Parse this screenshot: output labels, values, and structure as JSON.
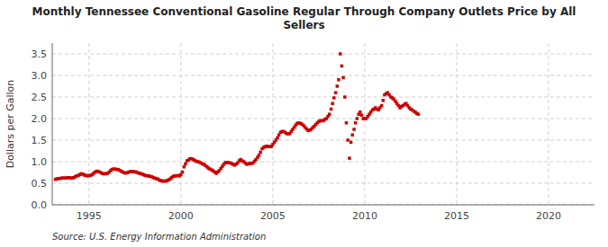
{
  "chart_data": {
    "type": "scatter",
    "title": "Monthly Tennessee Conventional Gasoline Regular Through Company Outlets Price by All\nSellers",
    "y_label": "Dollars per Gallon",
    "source": "Source: U.S. Energy Information Administration",
    "color": "#cc0000",
    "marker": "square",
    "grid": true,
    "xlim": [
      1993.0,
      2022.5
    ],
    "ylim": [
      0.0,
      3.75
    ],
    "xticks": [
      1995,
      2000,
      2005,
      2010,
      2015,
      2020
    ],
    "yticks": [
      {
        "value": 0.0,
        "label": "0.0"
      },
      0.5,
      {
        "value": 1.0,
        "label": "1.0"
      },
      1.5,
      {
        "value": 2.0,
        "label": "2.0"
      },
      2.5,
      {
        "value": 3.0,
        "label": "3.0"
      },
      3.5
    ],
    "x": [
      1993.17,
      1993.25,
      1993.33,
      1993.42,
      1993.5,
      1993.58,
      1993.67,
      1993.75,
      1993.83,
      1993.92,
      1994.0,
      1994.08,
      1994.17,
      1994.25,
      1994.33,
      1994.42,
      1994.5,
      1994.58,
      1994.67,
      1994.75,
      1994.83,
      1994.92,
      1995.0,
      1995.08,
      1995.17,
      1995.25,
      1995.33,
      1995.42,
      1995.5,
      1995.58,
      1995.67,
      1995.75,
      1995.83,
      1995.92,
      1996.0,
      1996.08,
      1996.17,
      1996.25,
      1996.33,
      1996.42,
      1996.5,
      1996.58,
      1996.67,
      1996.75,
      1996.83,
      1996.92,
      1997.0,
      1997.08,
      1997.17,
      1997.25,
      1997.33,
      1997.42,
      1997.5,
      1997.58,
      1997.67,
      1997.75,
      1997.83,
      1997.92,
      1998.0,
      1998.08,
      1998.17,
      1998.25,
      1998.33,
      1998.42,
      1998.5,
      1998.58,
      1998.67,
      1998.75,
      1998.83,
      1998.92,
      1999.0,
      1999.08,
      1999.17,
      1999.25,
      1999.33,
      1999.42,
      1999.5,
      1999.58,
      1999.67,
      1999.75,
      1999.83,
      1999.92,
      2000.0,
      2000.08,
      2000.17,
      2000.25,
      2000.33,
      2000.42,
      2000.5,
      2000.58,
      2000.67,
      2000.75,
      2000.83,
      2000.92,
      2001.0,
      2001.08,
      2001.17,
      2001.25,
      2001.33,
      2001.42,
      2001.5,
      2001.58,
      2001.67,
      2001.75,
      2001.83,
      2001.92,
      2002.0,
      2002.08,
      2002.17,
      2002.25,
      2002.33,
      2002.42,
      2002.5,
      2002.58,
      2002.67,
      2002.75,
      2002.83,
      2002.92,
      2003.0,
      2003.08,
      2003.17,
      2003.25,
      2003.33,
      2003.42,
      2003.5,
      2003.58,
      2003.67,
      2003.75,
      2003.83,
      2003.92,
      2004.0,
      2004.08,
      2004.17,
      2004.25,
      2004.33,
      2004.42,
      2004.5,
      2004.58,
      2004.67,
      2004.75,
      2004.83,
      2004.92,
      2005.0,
      2005.08,
      2005.17,
      2005.25,
      2005.33,
      2005.42,
      2005.5,
      2005.58,
      2005.67,
      2005.75,
      2005.83,
      2005.92,
      2006.0,
      2006.08,
      2006.17,
      2006.25,
      2006.33,
      2006.42,
      2006.5,
      2006.58,
      2006.67,
      2006.75,
      2006.83,
      2006.92,
      2007.0,
      2007.08,
      2007.17,
      2007.25,
      2007.33,
      2007.42,
      2007.5,
      2007.58,
      2007.67,
      2007.75,
      2007.83,
      2007.92,
      2008.0,
      2008.08,
      2008.17,
      2008.25,
      2008.33,
      2008.42,
      2008.5,
      2008.58,
      2008.67,
      2008.75,
      2008.83,
      2008.92,
      2009.0,
      2009.08,
      2009.17,
      2009.25,
      2009.33,
      2009.42,
      2009.5,
      2009.58,
      2009.67,
      2009.75,
      2009.83,
      2009.92,
      2010.0,
      2010.08,
      2010.17,
      2010.25,
      2010.33,
      2010.42,
      2010.5,
      2010.58,
      2010.67,
      2010.75,
      2010.83,
      2010.92,
      2011.0,
      2011.08,
      2011.17,
      2011.25,
      2011.33,
      2011.42,
      2011.5,
      2011.58,
      2011.67,
      2011.75,
      2011.83,
      2011.92,
      2012.0,
      2012.08,
      2012.17,
      2012.25,
      2012.33,
      2012.42,
      2012.5,
      2012.58,
      2012.67,
      2012.75,
      2012.83,
      2012.92
    ],
    "values": [
      0.59,
      0.6,
      0.61,
      0.61,
      0.62,
      0.62,
      0.62,
      0.62,
      0.63,
      0.63,
      0.62,
      0.62,
      0.63,
      0.65,
      0.67,
      0.68,
      0.7,
      0.72,
      0.71,
      0.69,
      0.68,
      0.67,
      0.68,
      0.68,
      0.7,
      0.73,
      0.76,
      0.78,
      0.77,
      0.76,
      0.74,
      0.72,
      0.72,
      0.72,
      0.73,
      0.75,
      0.79,
      0.82,
      0.83,
      0.83,
      0.82,
      0.82,
      0.8,
      0.78,
      0.76,
      0.74,
      0.74,
      0.74,
      0.76,
      0.77,
      0.77,
      0.77,
      0.76,
      0.76,
      0.74,
      0.73,
      0.72,
      0.71,
      0.69,
      0.68,
      0.67,
      0.67,
      0.66,
      0.65,
      0.63,
      0.62,
      0.6,
      0.6,
      0.57,
      0.56,
      0.55,
      0.55,
      0.55,
      0.56,
      0.58,
      0.6,
      0.63,
      0.66,
      0.67,
      0.67,
      0.68,
      0.67,
      0.7,
      0.76,
      0.88,
      0.95,
      1.02,
      1.04,
      1.07,
      1.07,
      1.05,
      1.03,
      1.01,
      1.0,
      0.99,
      0.97,
      0.95,
      0.94,
      0.91,
      0.88,
      0.85,
      0.83,
      0.81,
      0.79,
      0.76,
      0.73,
      0.76,
      0.79,
      0.84,
      0.89,
      0.94,
      0.98,
      0.98,
      0.98,
      0.97,
      0.96,
      0.94,
      0.92,
      0.94,
      0.97,
      1.02,
      1.05,
      1.02,
      1.0,
      0.97,
      0.94,
      0.95,
      0.96,
      0.96,
      0.97,
      1.01,
      1.05,
      1.1,
      1.15,
      1.22,
      1.3,
      1.33,
      1.35,
      1.36,
      1.35,
      1.35,
      1.35,
      1.4,
      1.45,
      1.5,
      1.55,
      1.62,
      1.68,
      1.7,
      1.7,
      1.68,
      1.65,
      1.65,
      1.65,
      1.7,
      1.75,
      1.8,
      1.85,
      1.89,
      1.9,
      1.89,
      1.87,
      1.84,
      1.8,
      1.76,
      1.72,
      1.73,
      1.75,
      1.79,
      1.82,
      1.86,
      1.9,
      1.93,
      1.95,
      1.95,
      1.95,
      1.98,
      2.0,
      2.05,
      2.1,
      2.22,
      2.35,
      2.48,
      2.6,
      2.75,
      2.9,
      3.5,
      3.22,
      2.95,
      2.5,
      1.9,
      1.5,
      1.08,
      1.45,
      1.62,
      1.75,
      1.9,
      2.0,
      2.1,
      2.15,
      2.08,
      2.0,
      2.0,
      2.0,
      2.05,
      2.1,
      2.15,
      2.2,
      2.22,
      2.25,
      2.22,
      2.2,
      2.25,
      2.3,
      2.42,
      2.55,
      2.58,
      2.6,
      2.55,
      2.5,
      2.48,
      2.45,
      2.4,
      2.35,
      2.3,
      2.25,
      2.28,
      2.3,
      2.33,
      2.35,
      2.3,
      2.25,
      2.22,
      2.2,
      2.17,
      2.15,
      2.12,
      2.1
    ]
  }
}
